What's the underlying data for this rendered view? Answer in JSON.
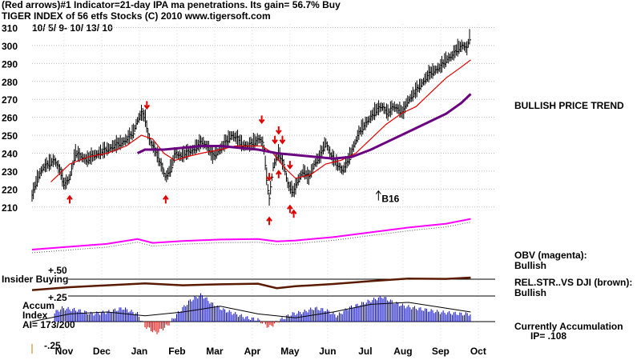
{
  "header": {
    "line1": "(Red arrows)#1 Indicator=21-day IPA ma penetrations. Its gain= 56.7% Buy",
    "line2": "TIGER INDEX of  56 etfs Stocks  (C) 2010  www.tigersoft.com",
    "date_range": "10/ 5/ 9- 10/ 13/ 10"
  },
  "side_notes": {
    "trend": "BULLISH PRICE TREND",
    "obv_title": "OBV (magenta):",
    "obv_status": "Bullish",
    "relstr_title": "REL.STR..VS DJI (brown):",
    "relstr_status": "Bullish",
    "accum_title": "Currently Accumulation",
    "accum_ip": "IP=  .108"
  },
  "panel_labels": {
    "insider": "Insider Buying",
    "plus50": "+.50",
    "plus25": "+.25",
    "accum": "Accum",
    "index": "Index",
    "ai": "AI= 173/200",
    "minus25": "-.25"
  },
  "signal_label": "B16",
  "colors": {
    "price": "#000000",
    "ma21": "#e00000",
    "ma_long": "#6a0080",
    "obv": "#ff00ff",
    "relstr": "#5a1a00",
    "accum_pos": "#0000c8",
    "accum_neg": "#e00000",
    "buy_arrow": "#e00000"
  },
  "chart_data": {
    "type": "line",
    "title": "TIGER INDEX of  56 etfs Stocks",
    "y_ticks": [
      310,
      300,
      290,
      280,
      270,
      260,
      250,
      240,
      230,
      220,
      210
    ],
    "ylim": [
      205,
      312
    ],
    "x_ticks": [
      "Nov",
      "Dec",
      "Jan",
      "Feb",
      "Mar",
      "Apr",
      "May",
      "Jun",
      "Jul",
      "Aug",
      "Sep",
      "Oct"
    ],
    "x_tick_month_index": [
      0.85,
      1.85,
      2.85,
      3.85,
      4.85,
      5.85,
      6.85,
      7.85,
      8.85,
      9.85,
      10.85,
      11.85
    ],
    "x_range_months": [
      0,
      12.3
    ],
    "grid": true,
    "series": [
      {
        "kind": "price",
        "points": [
          [
            0,
            216
          ],
          [
            0.15,
            226
          ],
          [
            0.3,
            232
          ],
          [
            0.45,
            234
          ],
          [
            0.6,
            236
          ],
          [
            0.75,
            230
          ],
          [
            0.85,
            222
          ],
          [
            1.0,
            226
          ],
          [
            1.15,
            240
          ],
          [
            1.3,
            238
          ],
          [
            1.45,
            236
          ],
          [
            1.6,
            238
          ],
          [
            1.8,
            240
          ],
          [
            2.0,
            242
          ],
          [
            2.2,
            244
          ],
          [
            2.4,
            246
          ],
          [
            2.55,
            248
          ],
          [
            2.7,
            252
          ],
          [
            2.8,
            258
          ],
          [
            2.9,
            262
          ],
          [
            3.0,
            260
          ],
          [
            3.1,
            248
          ],
          [
            3.2,
            244
          ],
          [
            3.3,
            240
          ],
          [
            3.45,
            232
          ],
          [
            3.55,
            226
          ],
          [
            3.7,
            232
          ],
          [
            3.8,
            240
          ],
          [
            3.95,
            238
          ],
          [
            4.1,
            240
          ],
          [
            4.3,
            242
          ],
          [
            4.5,
            246
          ],
          [
            4.65,
            244
          ],
          [
            4.8,
            238
          ],
          [
            5.0,
            242
          ],
          [
            5.15,
            246
          ],
          [
            5.3,
            250
          ],
          [
            5.45,
            248
          ],
          [
            5.6,
            244
          ],
          [
            5.75,
            244
          ],
          [
            5.9,
            246
          ],
          [
            6.05,
            248
          ],
          [
            6.15,
            244
          ],
          [
            6.25,
            222
          ],
          [
            6.3,
            214
          ],
          [
            6.4,
            232
          ],
          [
            6.55,
            240
          ],
          [
            6.7,
            232
          ],
          [
            6.8,
            222
          ],
          [
            6.95,
            218
          ],
          [
            7.05,
            224
          ],
          [
            7.2,
            230
          ],
          [
            7.35,
            226
          ],
          [
            7.5,
            234
          ],
          [
            7.65,
            238
          ],
          [
            7.8,
            246
          ],
          [
            7.95,
            238
          ],
          [
            8.1,
            234
          ],
          [
            8.25,
            230
          ],
          [
            8.4,
            236
          ],
          [
            8.55,
            244
          ],
          [
            8.7,
            252
          ],
          [
            8.85,
            256
          ],
          [
            9.0,
            260
          ],
          [
            9.15,
            264
          ],
          [
            9.3,
            266
          ],
          [
            9.45,
            262
          ],
          [
            9.6,
            266
          ],
          [
            9.75,
            264
          ],
          [
            9.85,
            262
          ],
          [
            9.95,
            268
          ],
          [
            10.1,
            272
          ],
          [
            10.25,
            276
          ],
          [
            10.4,
            280
          ],
          [
            10.55,
            284
          ],
          [
            10.7,
            286
          ],
          [
            10.85,
            288
          ],
          [
            11.0,
            292
          ],
          [
            11.15,
            294
          ],
          [
            11.3,
            298
          ],
          [
            11.45,
            300
          ],
          [
            11.55,
            298
          ],
          [
            11.65,
            307
          ]
        ]
      },
      {
        "kind": "ma21",
        "points": [
          [
            0.5,
            224
          ],
          [
            1.0,
            234
          ],
          [
            1.5,
            238
          ],
          [
            2.0,
            240
          ],
          [
            2.5,
            244
          ],
          [
            2.9,
            250
          ],
          [
            3.2,
            248
          ],
          [
            3.5,
            240
          ],
          [
            3.8,
            236
          ],
          [
            4.1,
            238
          ],
          [
            4.5,
            240
          ],
          [
            5.0,
            242
          ],
          [
            5.4,
            244
          ],
          [
            5.8,
            244
          ],
          [
            6.1,
            244
          ],
          [
            6.4,
            240
          ],
          [
            6.7,
            232
          ],
          [
            7.0,
            226
          ],
          [
            7.4,
            228
          ],
          [
            7.8,
            234
          ],
          [
            8.2,
            236
          ],
          [
            8.6,
            240
          ],
          [
            9.0,
            248
          ],
          [
            9.4,
            256
          ],
          [
            9.8,
            262
          ],
          [
            10.2,
            266
          ],
          [
            10.6,
            274
          ],
          [
            11.0,
            282
          ],
          [
            11.4,
            288
          ],
          [
            11.65,
            292
          ]
        ]
      },
      {
        "kind": "ma_long",
        "points": [
          [
            2.8,
            240
          ],
          [
            3.0,
            242
          ],
          [
            3.5,
            242
          ],
          [
            4.0,
            243
          ],
          [
            4.5,
            244
          ],
          [
            5.0,
            244
          ],
          [
            5.5,
            243
          ],
          [
            6.0,
            242
          ],
          [
            6.5,
            240
          ],
          [
            7.0,
            239
          ],
          [
            7.5,
            238
          ],
          [
            8.0,
            237
          ],
          [
            8.5,
            238
          ],
          [
            9.0,
            242
          ],
          [
            9.5,
            247
          ],
          [
            10.0,
            252
          ],
          [
            10.5,
            257
          ],
          [
            11.0,
            262
          ],
          [
            11.4,
            268
          ],
          [
            11.65,
            273
          ]
        ]
      }
    ],
    "sell_arrows_month": [
      3.05,
      6.1,
      6.3,
      6.45,
      6.55,
      6.65,
      6.85
    ],
    "buy_arrows_month": [
      1.0,
      3.55,
      6.3,
      6.55,
      6.85,
      6.95
    ],
    "signal_arrow": {
      "month": 9.2,
      "value": 219
    },
    "obv_series": [
      [
        0,
        3
      ],
      [
        1,
        3.6
      ],
      [
        2,
        4.2
      ],
      [
        2.8,
        5.2
      ],
      [
        3.2,
        4.4
      ],
      [
        4,
        4.8
      ],
      [
        5,
        5.1
      ],
      [
        6,
        5.2
      ],
      [
        6.5,
        4.7
      ],
      [
        7,
        4.9
      ],
      [
        8,
        5.6
      ],
      [
        9,
        6.6
      ],
      [
        10,
        7.6
      ],
      [
        11,
        8.4
      ],
      [
        11.65,
        9.4
      ]
    ],
    "relstr_series": [
      [
        0,
        3.1
      ],
      [
        1,
        4.0
      ],
      [
        2,
        4.6
      ],
      [
        3,
        5.2
      ],
      [
        4,
        4.6
      ],
      [
        5,
        4.9
      ],
      [
        6,
        5.1
      ],
      [
        6.5,
        3.7
      ],
      [
        7,
        4.3
      ],
      [
        8,
        5.0
      ],
      [
        9,
        5.9
      ],
      [
        10,
        6.7
      ],
      [
        11,
        6.6
      ],
      [
        11.65,
        7.0
      ]
    ],
    "accum_series": [
      [
        0,
        -0.05
      ],
      [
        0.4,
        0.05
      ],
      [
        0.8,
        0.14
      ],
      [
        1.2,
        0.12
      ],
      [
        1.6,
        0.08
      ],
      [
        2.0,
        0.1
      ],
      [
        2.4,
        0.14
      ],
      [
        2.8,
        0.08
      ],
      [
        3.0,
        -0.05
      ],
      [
        3.3,
        -0.12
      ],
      [
        3.6,
        -0.04
      ],
      [
        3.9,
        0.1
      ],
      [
        4.2,
        0.22
      ],
      [
        4.5,
        0.28
      ],
      [
        4.8,
        0.18
      ],
      [
        5.1,
        0.12
      ],
      [
        5.4,
        0.08
      ],
      [
        5.7,
        0.04
      ],
      [
        6.0,
        0.02
      ],
      [
        6.3,
        -0.06
      ],
      [
        6.6,
        0.02
      ],
      [
        6.9,
        0.08
      ],
      [
        7.2,
        0.1
      ],
      [
        7.5,
        0.14
      ],
      [
        7.8,
        0.12
      ],
      [
        8.1,
        0.06
      ],
      [
        8.4,
        0.14
      ],
      [
        8.7,
        0.18
      ],
      [
        9.0,
        0.22
      ],
      [
        9.3,
        0.26
      ],
      [
        9.6,
        0.2
      ],
      [
        9.9,
        0.16
      ],
      [
        10.2,
        0.14
      ],
      [
        10.5,
        0.12
      ],
      [
        10.8,
        0.1
      ],
      [
        11.1,
        0.09
      ],
      [
        11.4,
        0.08
      ],
      [
        11.65,
        0.08
      ]
    ],
    "accum_ma_series": [
      [
        0,
        0
      ],
      [
        1,
        0.08
      ],
      [
        2,
        0.1
      ],
      [
        3,
        0.06
      ],
      [
        4,
        0.1
      ],
      [
        5,
        0.16
      ],
      [
        6,
        0.08
      ],
      [
        7,
        0.04
      ],
      [
        8,
        0.1
      ],
      [
        9,
        0.18
      ],
      [
        10,
        0.2
      ],
      [
        11,
        0.14
      ],
      [
        11.65,
        0.1
      ]
    ]
  }
}
